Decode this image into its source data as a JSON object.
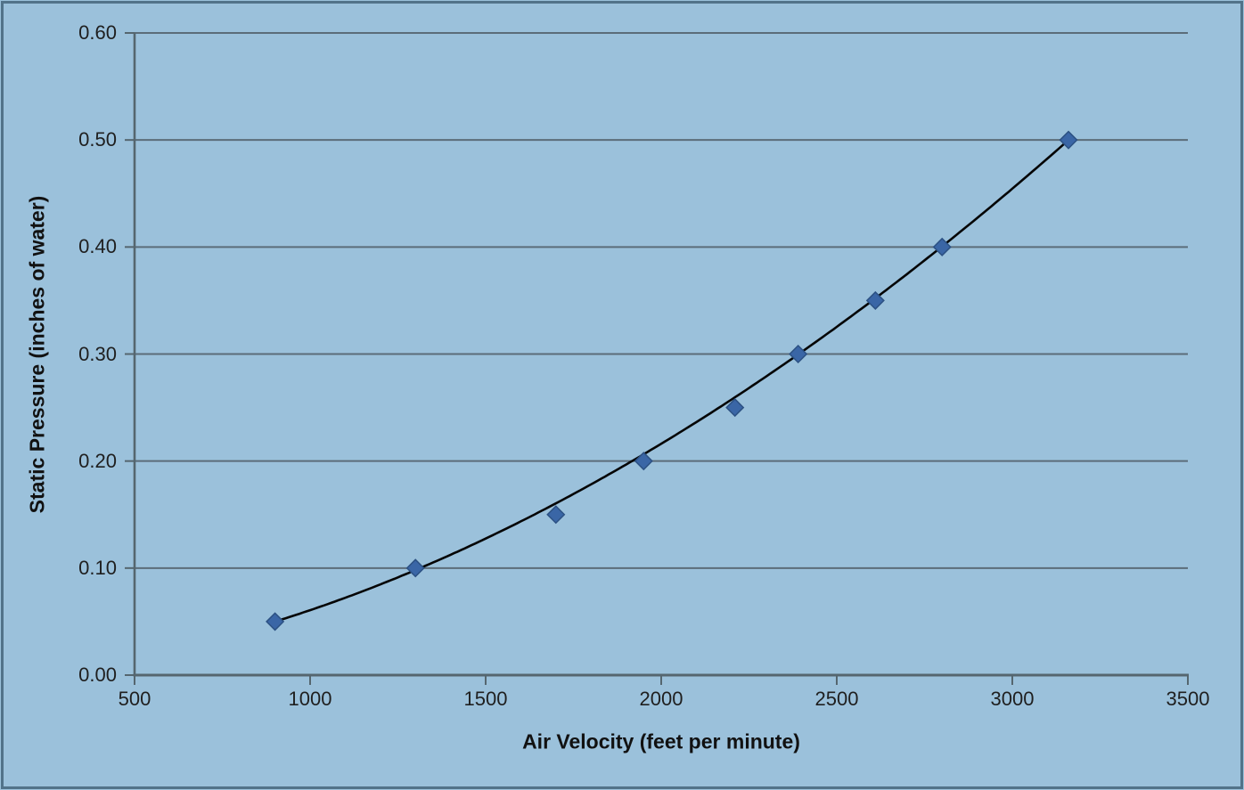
{
  "chart_data": {
    "type": "scatter",
    "title": "",
    "xlabel": "Air Velocity (feet per minute)",
    "ylabel": "Static Pressure (inches of water)",
    "x": [
      900,
      1300,
      1700,
      1950,
      2210,
      2390,
      2610,
      2800,
      3160
    ],
    "y": [
      0.05,
      0.1,
      0.15,
      0.2,
      0.25,
      0.3,
      0.35,
      0.4,
      0.5
    ],
    "xlim": [
      500,
      3500
    ],
    "ylim": [
      0,
      0.6
    ],
    "x_ticks": [
      "500",
      "1000",
      "1500",
      "2000",
      "2500",
      "3000",
      "3500"
    ],
    "y_ticks": [
      "0.00",
      "0.10",
      "0.20",
      "0.30",
      "0.40",
      "0.50",
      "0.60"
    ],
    "grid": "horizontal",
    "legend": "none",
    "marker": "diamond",
    "trendline": {
      "type": "power",
      "a": 1.923e-07,
      "b": 1.833,
      "x_start": 900,
      "x_end": 3160
    }
  },
  "colors": {
    "background": "#9BC1DB",
    "frame_border": "#527389",
    "gridline": "#5B6C79",
    "axis": "#55666f",
    "tick_text": "#1f1f1f",
    "title_text": "#111111",
    "marker_fill": "#3A66A6",
    "marker_stroke": "#2C5183",
    "trendline_color": "#050505"
  }
}
